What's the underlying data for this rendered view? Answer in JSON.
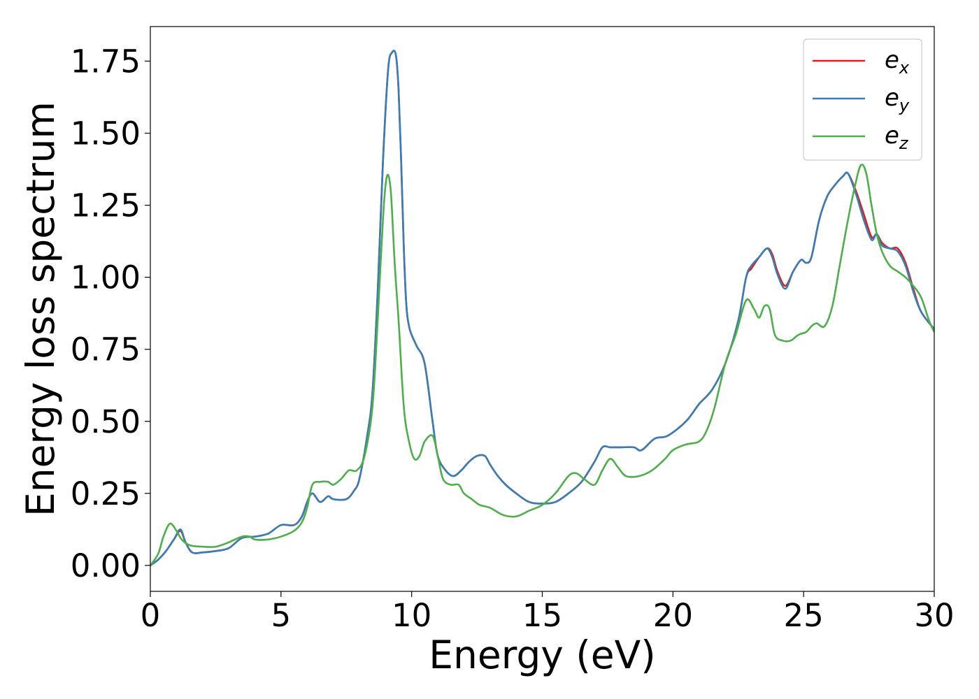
{
  "chart_data": {
    "type": "line",
    "xlabel": "Energy (eV)",
    "ylabel": "Energy loss spectrum",
    "xlim": [
      0,
      30
    ],
    "ylim": [
      -0.09,
      1.87
    ],
    "xticks": [
      "0",
      "5",
      "10",
      "15",
      "20",
      "25",
      "30"
    ],
    "yticks": [
      "0.00",
      "0.25",
      "0.50",
      "0.75",
      "1.00",
      "1.25",
      "1.50",
      "1.75"
    ],
    "grid": false,
    "legend_position": "top-right",
    "series": [
      {
        "name": "e",
        "subscript": "x",
        "color": "#e41a1c",
        "x": [
          0,
          0.3,
          0.6,
          0.9,
          1.15,
          1.35,
          1.6,
          2,
          2.5,
          3,
          3.5,
          4,
          4.5,
          5,
          5.5,
          5.8,
          6,
          6.2,
          6.5,
          6.8,
          7,
          7.5,
          7.8,
          8,
          8.3,
          8.5,
          8.7,
          8.9,
          9.1,
          9.25,
          9.4,
          9.5,
          9.6,
          9.7,
          9.8,
          9.9,
          10,
          10.2,
          10.5,
          10.8,
          11,
          11.3,
          11.6,
          11.9,
          12.2,
          12.5,
          12.8,
          13,
          13.3,
          13.6,
          14,
          14.5,
          15,
          15.5,
          16,
          16.5,
          17,
          17.3,
          17.6,
          18,
          18.5,
          18.8,
          19.3,
          19.8,
          20.5,
          21,
          21.5,
          22,
          22.5,
          22.8,
          23,
          23.3,
          23.6,
          23.8,
          24,
          24.3,
          24.6,
          24.9,
          25.1,
          25.3,
          25.6,
          25.9,
          26.2,
          26.5,
          26.7,
          27,
          27.3,
          27.6,
          27.8,
          28,
          28.3,
          28.6,
          28.9,
          29.2,
          29.5,
          30
        ],
        "values": [
          0,
          0.02,
          0.05,
          0.09,
          0.12,
          0.08,
          0.045,
          0.045,
          0.05,
          0.06,
          0.095,
          0.1,
          0.11,
          0.14,
          0.14,
          0.17,
          0.22,
          0.25,
          0.22,
          0.24,
          0.23,
          0.23,
          0.26,
          0.3,
          0.45,
          0.6,
          0.95,
          1.4,
          1.72,
          1.78,
          1.77,
          1.65,
          1.4,
          1.1,
          0.9,
          0.83,
          0.8,
          0.76,
          0.7,
          0.5,
          0.38,
          0.33,
          0.31,
          0.33,
          0.36,
          0.38,
          0.38,
          0.35,
          0.31,
          0.28,
          0.25,
          0.22,
          0.215,
          0.22,
          0.25,
          0.29,
          0.36,
          0.41,
          0.41,
          0.41,
          0.41,
          0.4,
          0.44,
          0.45,
          0.5,
          0.56,
          0.61,
          0.7,
          0.85,
          1.0,
          1.03,
          1.07,
          1.1,
          1.08,
          1.02,
          0.97,
          1.02,
          1.06,
          1.05,
          1.07,
          1.2,
          1.28,
          1.32,
          1.35,
          1.36,
          1.3,
          1.22,
          1.14,
          1.15,
          1.12,
          1.1,
          1.1,
          1.05,
          0.96,
          0.88,
          0.82
        ]
      },
      {
        "name": "e",
        "subscript": "y",
        "color": "#377eb8",
        "x": [
          0,
          0.3,
          0.6,
          0.9,
          1.15,
          1.35,
          1.6,
          2,
          2.5,
          3,
          3.5,
          4,
          4.5,
          5,
          5.5,
          5.8,
          6,
          6.2,
          6.5,
          6.8,
          7,
          7.5,
          7.8,
          8,
          8.3,
          8.5,
          8.7,
          8.9,
          9.1,
          9.25,
          9.4,
          9.5,
          9.6,
          9.7,
          9.8,
          9.9,
          10,
          10.2,
          10.5,
          10.8,
          11,
          11.3,
          11.6,
          11.9,
          12.2,
          12.5,
          12.8,
          13,
          13.3,
          13.6,
          14,
          14.5,
          15,
          15.5,
          16,
          16.5,
          17,
          17.3,
          17.6,
          18,
          18.5,
          18.8,
          19.3,
          19.8,
          20.5,
          21,
          21.5,
          22,
          22.5,
          22.8,
          23,
          23.3,
          23.6,
          23.8,
          24,
          24.3,
          24.6,
          24.9,
          25.1,
          25.3,
          25.6,
          25.9,
          26.2,
          26.5,
          26.7,
          27,
          27.3,
          27.6,
          27.8,
          28,
          28.3,
          28.6,
          28.9,
          29.2,
          29.5,
          30
        ],
        "values": [
          0,
          0.02,
          0.05,
          0.09,
          0.125,
          0.08,
          0.045,
          0.045,
          0.05,
          0.06,
          0.095,
          0.1,
          0.11,
          0.14,
          0.14,
          0.17,
          0.22,
          0.25,
          0.22,
          0.24,
          0.23,
          0.23,
          0.26,
          0.3,
          0.45,
          0.6,
          0.95,
          1.4,
          1.72,
          1.78,
          1.77,
          1.65,
          1.4,
          1.1,
          0.9,
          0.83,
          0.8,
          0.76,
          0.7,
          0.5,
          0.38,
          0.33,
          0.31,
          0.33,
          0.36,
          0.38,
          0.38,
          0.35,
          0.31,
          0.28,
          0.25,
          0.22,
          0.215,
          0.22,
          0.25,
          0.29,
          0.36,
          0.41,
          0.41,
          0.41,
          0.41,
          0.4,
          0.44,
          0.45,
          0.5,
          0.56,
          0.61,
          0.7,
          0.85,
          1.0,
          1.04,
          1.07,
          1.1,
          1.07,
          1.01,
          0.96,
          1.02,
          1.06,
          1.05,
          1.07,
          1.2,
          1.28,
          1.32,
          1.35,
          1.36,
          1.29,
          1.2,
          1.13,
          1.15,
          1.11,
          1.1,
          1.09,
          1.04,
          0.95,
          0.88,
          0.82
        ]
      },
      {
        "name": "e",
        "subscript": "z",
        "color": "#4daf4a",
        "x": [
          0,
          0.3,
          0.5,
          0.75,
          1,
          1.2,
          1.5,
          2,
          2.5,
          3,
          3.5,
          3.8,
          4,
          4.5,
          5,
          5.5,
          5.8,
          6,
          6.2,
          6.5,
          6.8,
          7,
          7.3,
          7.6,
          7.9,
          8.2,
          8.5,
          8.7,
          8.9,
          9.05,
          9.2,
          9.35,
          9.5,
          9.7,
          9.9,
          10.1,
          10.3,
          10.5,
          10.8,
          11,
          11.2,
          11.5,
          11.8,
          12,
          12.3,
          12.6,
          13,
          13.5,
          14,
          14.5,
          15,
          15.5,
          16,
          16.3,
          16.6,
          17,
          17.3,
          17.6,
          17.9,
          18.2,
          18.7,
          19.2,
          19.7,
          20,
          20.5,
          21,
          21.3,
          21.6,
          22,
          22.4,
          22.8,
          23.1,
          23.3,
          23.5,
          23.7,
          23.9,
          24.2,
          24.5,
          24.8,
          25.1,
          25.3,
          25.5,
          25.8,
          26.1,
          26.4,
          26.7,
          27,
          27.2,
          27.4,
          27.6,
          27.8,
          28,
          28.3,
          28.6,
          28.9,
          29.2,
          29.5,
          29.8,
          30
        ],
        "values": [
          0,
          0.04,
          0.1,
          0.145,
          0.12,
          0.09,
          0.07,
          0.065,
          0.065,
          0.08,
          0.1,
          0.1,
          0.09,
          0.09,
          0.1,
          0.12,
          0.15,
          0.2,
          0.28,
          0.29,
          0.29,
          0.28,
          0.3,
          0.33,
          0.33,
          0.38,
          0.55,
          0.85,
          1.2,
          1.35,
          1.3,
          1.05,
          0.85,
          0.55,
          0.43,
          0.37,
          0.38,
          0.43,
          0.45,
          0.38,
          0.3,
          0.28,
          0.28,
          0.25,
          0.23,
          0.21,
          0.2,
          0.175,
          0.17,
          0.19,
          0.21,
          0.25,
          0.31,
          0.32,
          0.3,
          0.28,
          0.33,
          0.37,
          0.34,
          0.31,
          0.31,
          0.33,
          0.37,
          0.4,
          0.42,
          0.43,
          0.47,
          0.55,
          0.7,
          0.8,
          0.92,
          0.89,
          0.86,
          0.9,
          0.89,
          0.8,
          0.78,
          0.78,
          0.8,
          0.81,
          0.83,
          0.84,
          0.83,
          0.9,
          1.05,
          1.2,
          1.33,
          1.39,
          1.36,
          1.25,
          1.15,
          1.09,
          1.04,
          1.02,
          1.0,
          0.97,
          0.93,
          0.85,
          0.81
        ]
      }
    ]
  }
}
